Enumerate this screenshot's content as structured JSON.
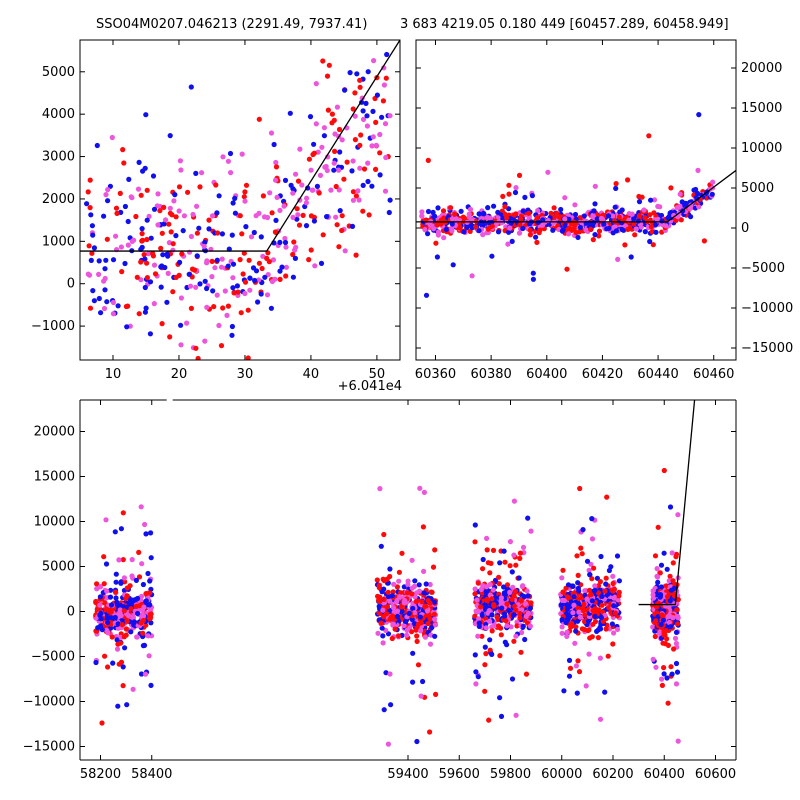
{
  "titles": {
    "left": "SSO04M0207.046213 (2291.49, 7937.41)",
    "right": "3 683 4219.05 0.180 449 [60457.289, 60458.949]"
  },
  "colors": {
    "blue": "#1010ee",
    "red": "#ff0a0a",
    "magenta": "#ee55dd",
    "fit_line": "#000000",
    "axes": "#000000"
  },
  "chart_data": [
    {
      "type": "scatter",
      "name": "zoom-last-season",
      "title": "SSO04M0207.046213 (2291.49, 7937.41)",
      "x_offset_label": "+6.041e4",
      "xlim": [
        5,
        53.5
      ],
      "ylim": [
        -1800,
        5750
      ],
      "x_ticks": [
        "10",
        "20",
        "30",
        "40",
        "50"
      ],
      "x_tick_values": [
        10,
        20,
        30,
        40,
        50
      ],
      "y_ticks": [
        "−1000",
        "0",
        "1000",
        "2000",
        "3000",
        "4000",
        "5000"
      ],
      "y_tick_values": [
        -1000,
        0,
        1000,
        2000,
        3000,
        4000,
        5000
      ],
      "fit_line": [
        [
          5,
          770
        ],
        [
          33.3,
          770
        ],
        [
          53.5,
          5750
        ]
      ],
      "series_colors": [
        "blue",
        "red",
        "magenta"
      ]
    },
    {
      "type": "scatter",
      "name": "final-season",
      "title": "3 683 4219.05 0.180 449 [60457.289, 60458.949]",
      "xlim": [
        60353,
        60468
      ],
      "ylim": [
        -16500,
        23500
      ],
      "x_ticks": [
        "60360",
        "60380",
        "60400",
        "60420",
        "60440",
        "60460"
      ],
      "x_tick_values": [
        60360,
        60380,
        60400,
        60420,
        60440,
        60460
      ],
      "y_ticks": [
        "−15000",
        "−10000",
        "−5000",
        "0",
        "5000",
        "10000",
        "15000",
        "20000"
      ],
      "y_tick_values": [
        -15000,
        -10000,
        -5000,
        0,
        5000,
        10000,
        15000,
        20000
      ],
      "fit_line": [
        [
          60353,
          770
        ],
        [
          60443.3,
          770
        ],
        [
          60468,
          7200
        ]
      ],
      "series_colors": [
        "blue",
        "red",
        "magenta"
      ]
    },
    {
      "type": "scatter",
      "name": "full-light-curve",
      "xlim": [
        58120,
        60680
      ],
      "ylim": [
        -16500,
        23500
      ],
      "axis_break_x": 58470,
      "x_ticks": [
        "58200",
        "58400",
        "59400",
        "59600",
        "59800",
        "60000",
        "60200",
        "60400",
        "60600"
      ],
      "x_tick_values": [
        58200,
        58400,
        59400,
        59600,
        59800,
        60000,
        60200,
        60400,
        60600
      ],
      "y_ticks": [
        "−15000",
        "−10000",
        "−5000",
        "0",
        "5000",
        "10000",
        "15000",
        "20000"
      ],
      "y_tick_values": [
        -15000,
        -10000,
        -5000,
        0,
        5000,
        10000,
        15000,
        20000
      ],
      "fit_line": [
        [
          60300,
          770
        ],
        [
          60443.3,
          770
        ],
        [
          60520,
          24000
        ]
      ],
      "seasons": [
        {
          "x_range": [
            58180,
            58400
          ],
          "center": 0
        },
        {
          "x_range": [
            59280,
            59510
          ],
          "center": 0
        },
        {
          "x_range": [
            59660,
            59880
          ],
          "center": 500
        },
        {
          "x_range": [
            59995,
            60225
          ],
          "center": 500
        },
        {
          "x_range": [
            60355,
            60455
          ],
          "center": 300
        }
      ],
      "series_colors": [
        "blue",
        "red",
        "magenta"
      ]
    }
  ]
}
